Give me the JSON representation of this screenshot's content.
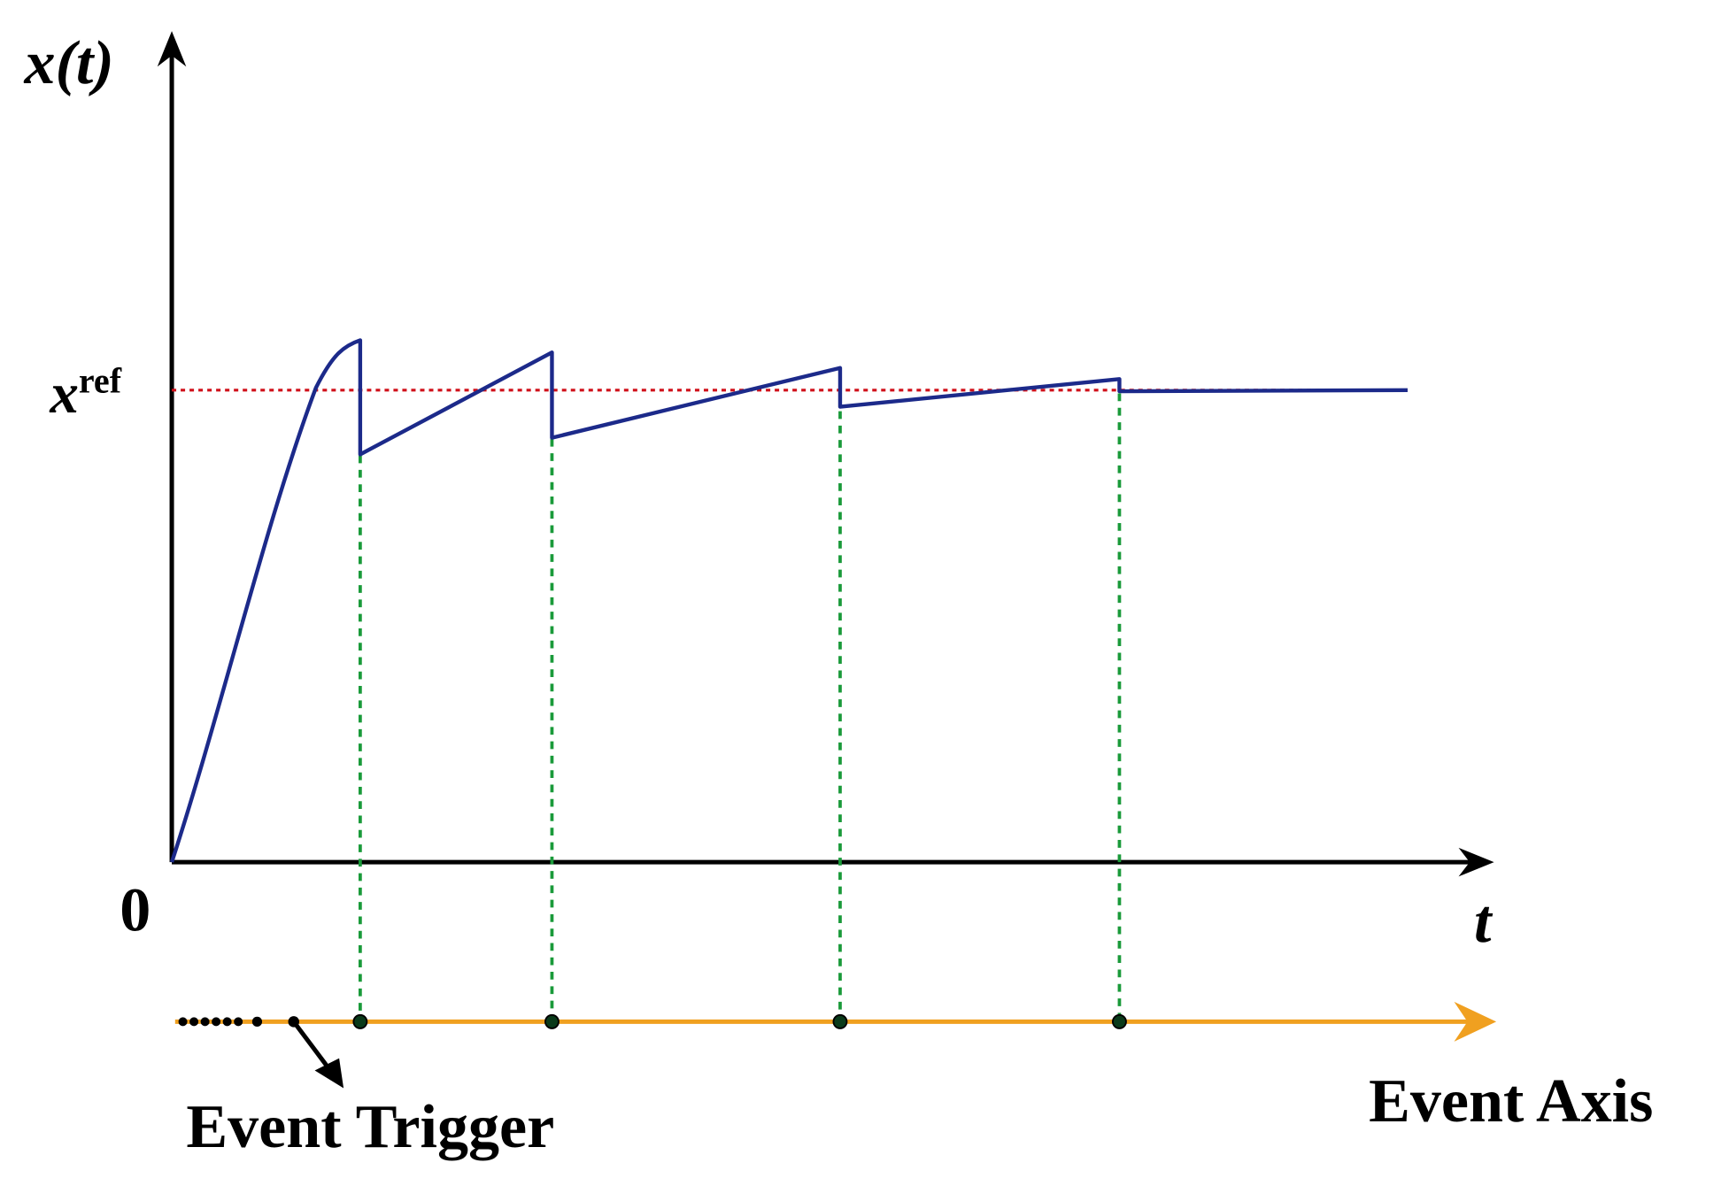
{
  "y_axis_label": "x(t)",
  "x_axis_label": "t",
  "origin_label": "0",
  "reference": {
    "symbol": "x",
    "superscript": "ref"
  },
  "event_trigger_label": "Event Trigger",
  "event_axis_label": "Event Axis"
}
